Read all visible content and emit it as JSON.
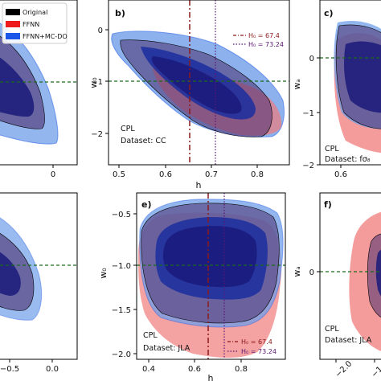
{
  "legend": {
    "items": [
      {
        "label": "Original",
        "color": "#000000"
      },
      {
        "label": "FFNN",
        "color": "#ee1c1c"
      },
      {
        "label": "FFNN+MC-DO",
        "color": "#1a56e8"
      }
    ]
  },
  "colors": {
    "original_fill": "#4b2d6e",
    "ffnn_fill": "#f07a7a",
    "ffnn_inner": "#c53a47",
    "mcdo_fill": "#6f9ee8",
    "mcdo_inner": "#1b2ea0",
    "overlap_inner": "#1a1a7a",
    "ref_line": "#1a6b1a",
    "h0_line_1": "#8b1a1a",
    "h0_line_2": "#5a1670"
  },
  "chart_data": [
    {
      "panel": "a",
      "label": "",
      "type": "contour",
      "xticks": [
        "0"
      ],
      "yticks": [],
      "annotation": [],
      "reference_line": -1,
      "h0_lines": []
    },
    {
      "panel": "b",
      "label": "b)",
      "type": "contour",
      "xlabel": "h",
      "ylabel": "w₀",
      "xlim": [
        0.5,
        0.9
      ],
      "ylim": [
        -2.3,
        0.5
      ],
      "xticks": [
        "0.5",
        "0.6",
        "0.7",
        "0.8"
      ],
      "yticks": [
        "0",
        "−1",
        "−2"
      ],
      "annotation": [
        "CPL",
        "Dataset: CC"
      ],
      "reference_line": -1,
      "h0_lines": [
        {
          "value": 0.674,
          "label": "H₀ = 67.4",
          "style": "dashdot"
        },
        {
          "value": 0.7324,
          "label": "H₀ = 73.24",
          "style": "dotted"
        }
      ]
    },
    {
      "panel": "c",
      "label": "c)",
      "type": "contour",
      "ylabel": "wₐ",
      "xticks": [
        "0.6"
      ],
      "yticks": [
        "0",
        "−1",
        "−2"
      ],
      "annotation": [
        "CPL",
        "Dataset: fσ₈"
      ],
      "reference_line": 0,
      "h0_lines": []
    },
    {
      "panel": "d",
      "label": "",
      "type": "contour",
      "xticks": [
        "−0.5",
        "0.0"
      ],
      "yticks": [],
      "annotation": [],
      "reference_line": -1,
      "h0_lines": []
    },
    {
      "panel": "e",
      "label": "e)",
      "type": "contour",
      "xlabel": "h",
      "ylabel": "w₀",
      "xlim": [
        0.3,
        0.95
      ],
      "ylim": [
        -2.0,
        -0.35
      ],
      "xticks": [
        "0.4",
        "0.6",
        "0.8"
      ],
      "yticks": [
        "−0.5",
        "−1.0",
        "−1.5",
        "−2.0"
      ],
      "annotation": [
        "CPL",
        "Dataset: JLA"
      ],
      "reference_line": -1,
      "h0_lines": [
        {
          "value": 0.674,
          "label": "H₀ = 67.4",
          "style": "dashdot"
        },
        {
          "value": 0.7324,
          "label": "H₀ = 73.24",
          "style": "dotted"
        }
      ]
    },
    {
      "panel": "f",
      "label": "f)",
      "type": "contour",
      "ylabel": "wₐ",
      "xticks": [
        "−2.0",
        "−1"
      ],
      "yticks": [
        "0"
      ],
      "annotation": [
        "CPL",
        "Dataset: JLA"
      ],
      "reference_line": 0,
      "h0_lines": []
    }
  ]
}
